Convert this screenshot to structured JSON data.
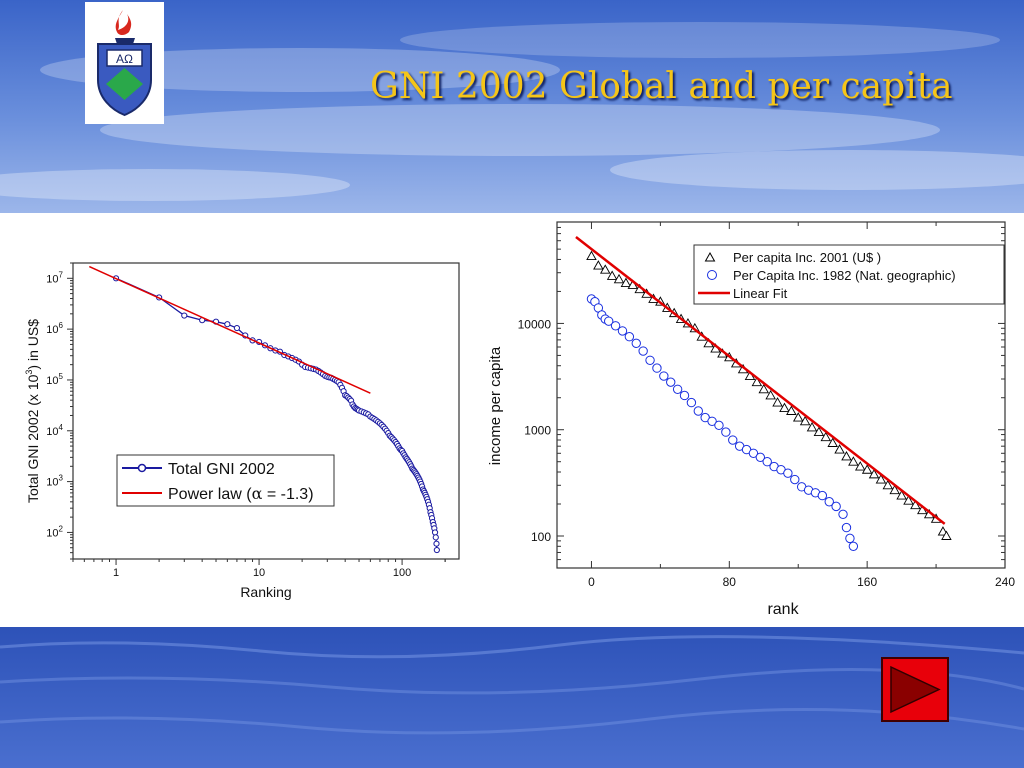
{
  "slide": {
    "title": "GNI 2002 Global and per capita",
    "title_color": "#f5c518",
    "logo_icon": "university-crest-icon",
    "logo_letters": "AΩ",
    "next_icon": "play-triangle-icon",
    "next_color": "#e8000a"
  },
  "chart_data": [
    {
      "type": "scatter",
      "xscale": "log",
      "yscale": "log",
      "xlabel": "Ranking",
      "ylabel": "Total GNI 2002 (x 10³) in US$",
      "ylabel_parts": [
        "Total GNI 2002 (x 10",
        "3",
        ") in US$"
      ],
      "xlim": [
        0.5,
        250
      ],
      "ylim": [
        30,
        20000000
      ],
      "xticks": [
        {
          "v": 1,
          "label": "1"
        },
        {
          "v": 10,
          "label": "10"
        },
        {
          "v": 100,
          "label": "100"
        }
      ],
      "yticks": [
        {
          "v": 100,
          "base": "10",
          "exp": "2"
        },
        {
          "v": 1000,
          "base": "10",
          "exp": "3"
        },
        {
          "v": 10000,
          "base": "10",
          "exp": "4"
        },
        {
          "v": 100000,
          "base": "10",
          "exp": "5"
        },
        {
          "v": 1000000,
          "base": "10",
          "exp": "6"
        },
        {
          "v": 10000000,
          "base": "10",
          "exp": "7"
        }
      ],
      "legend_position": "center",
      "series": [
        {
          "name": "Total GNI 2002",
          "color": "#1a1aa0",
          "marker": "circle",
          "x": [
            1,
            2,
            3,
            4,
            5,
            6,
            7,
            8,
            9,
            10,
            11,
            12,
            13,
            14,
            15,
            16,
            17,
            18,
            19,
            20,
            21,
            22,
            23,
            24,
            25,
            26,
            27,
            28,
            29,
            30,
            31,
            32,
            33,
            34,
            35,
            36,
            37,
            38,
            39,
            40,
            41,
            42,
            43,
            44,
            45,
            46,
            47,
            48,
            49,
            50,
            52,
            54,
            56,
            58,
            60,
            62,
            64,
            66,
            68,
            70,
            72,
            74,
            76,
            78,
            80,
            82,
            84,
            86,
            88,
            90,
            92,
            94,
            96,
            98,
            100,
            102,
            104,
            106,
            108,
            110,
            112,
            114,
            116,
            118,
            120,
            122,
            124,
            126,
            128,
            130,
            132,
            134,
            136,
            138,
            140,
            142,
            144,
            146,
            148,
            150,
            152,
            154,
            156,
            158,
            160,
            162,
            164,
            166,
            168,
            170,
            172,
            174,
            175
          ],
          "y": [
            10000000,
            4200000,
            1850000,
            1500000,
            1400000,
            1250000,
            1050000,
            750000,
            600000,
            560000,
            480000,
            420000,
            380000,
            360000,
            310000,
            290000,
            270000,
            250000,
            230000,
            200000,
            180000,
            175000,
            170000,
            165000,
            160000,
            150000,
            140000,
            130000,
            120000,
            115000,
            112000,
            110000,
            105000,
            100000,
            95000,
            90000,
            80000,
            70000,
            60000,
            50000,
            48000,
            45000,
            42000,
            39000,
            33000,
            30000,
            28000,
            27000,
            26000,
            25000,
            24000,
            23000,
            22000,
            21000,
            19000,
            18000,
            17000,
            16000,
            15000,
            14000,
            13000,
            12000,
            11000,
            10000,
            9000,
            8000,
            7500,
            7000,
            6500,
            6000,
            5500,
            5000,
            4500,
            4200,
            4000,
            3600,
            3300,
            3000,
            2800,
            2600,
            2400,
            2200,
            2000,
            1800,
            1700,
            1600,
            1500,
            1400,
            1300,
            1200,
            1100,
            1000,
            900,
            800,
            700,
            650,
            600,
            550,
            500,
            450,
            400,
            350,
            300,
            250,
            220,
            190,
            160,
            140,
            120,
            100,
            80,
            60,
            45
          ]
        },
        {
          "name": "Power law (α = -1.3)",
          "legend_parts": [
            "Power law (",
            "α",
            " = -1.3)"
          ],
          "color": "#e00000",
          "type": "line",
          "x": [
            0.65,
            60
          ],
          "y": [
            17000000,
            55000
          ]
        }
      ]
    },
    {
      "type": "scatter",
      "xscale": "linear",
      "yscale": "log",
      "xlabel": "rank",
      "ylabel": "income per capita",
      "xlim": [
        -20,
        240
      ],
      "ylim": [
        50,
        90000
      ],
      "xticks": [
        {
          "v": 0,
          "label": "0"
        },
        {
          "v": 80,
          "label": "80"
        },
        {
          "v": 160,
          "label": "160"
        },
        {
          "v": 240,
          "label": "240"
        }
      ],
      "yticks": [
        {
          "v": 100,
          "label": "100"
        },
        {
          "v": 1000,
          "label": "1000"
        },
        {
          "v": 10000,
          "label": "10000"
        }
      ],
      "legend_position": "top-right",
      "series": [
        {
          "name": "Per capita Inc. 2001 (U$ )",
          "color": "#000000",
          "marker": "triangle",
          "x": [
            0,
            4,
            8,
            12,
            16,
            20,
            24,
            28,
            32,
            36,
            40,
            44,
            48,
            52,
            56,
            60,
            64,
            68,
            72,
            76,
            80,
            84,
            88,
            92,
            96,
            100,
            104,
            108,
            112,
            116,
            120,
            124,
            128,
            132,
            136,
            140,
            144,
            148,
            152,
            156,
            160,
            164,
            168,
            172,
            176,
            180,
            184,
            188,
            192,
            196,
            200,
            204,
            206
          ],
          "y": [
            43000,
            35000,
            32000,
            28000,
            26000,
            24000,
            23000,
            21000,
            19000,
            17000,
            16000,
            14000,
            12500,
            11000,
            10000,
            9000,
            7500,
            6500,
            5800,
            5200,
            4800,
            4200,
            3700,
            3200,
            2800,
            2400,
            2100,
            1800,
            1600,
            1500,
            1300,
            1200,
            1050,
            950,
            850,
            750,
            650,
            560,
            500,
            450,
            420,
            380,
            340,
            300,
            270,
            240,
            215,
            195,
            175,
            160,
            145,
            110,
            100
          ]
        },
        {
          "name": "Per Capita Inc. 1982 (Nat. geographic)",
          "color": "#1a30e0",
          "marker": "circle",
          "x": [
            0,
            2,
            4,
            6,
            8,
            10,
            14,
            18,
            22,
            26,
            30,
            34,
            38,
            42,
            46,
            50,
            54,
            58,
            62,
            66,
            70,
            74,
            78,
            82,
            86,
            90,
            94,
            98,
            102,
            106,
            110,
            114,
            118,
            122,
            126,
            130,
            134,
            138,
            142,
            146,
            148,
            150,
            152
          ],
          "y": [
            17000,
            16000,
            14000,
            12000,
            11000,
            10500,
            9500,
            8500,
            7500,
            6500,
            5500,
            4500,
            3800,
            3200,
            2800,
            2400,
            2100,
            1800,
            1500,
            1300,
            1200,
            1100,
            950,
            800,
            700,
            650,
            600,
            550,
            500,
            450,
            420,
            390,
            340,
            290,
            270,
            255,
            240,
            210,
            190,
            160,
            120,
            95,
            80
          ]
        },
        {
          "name": "Linear Fit",
          "color": "#e00000",
          "type": "line",
          "x": [
            -9,
            205
          ],
          "y": [
            65000,
            130
          ]
        }
      ]
    }
  ]
}
